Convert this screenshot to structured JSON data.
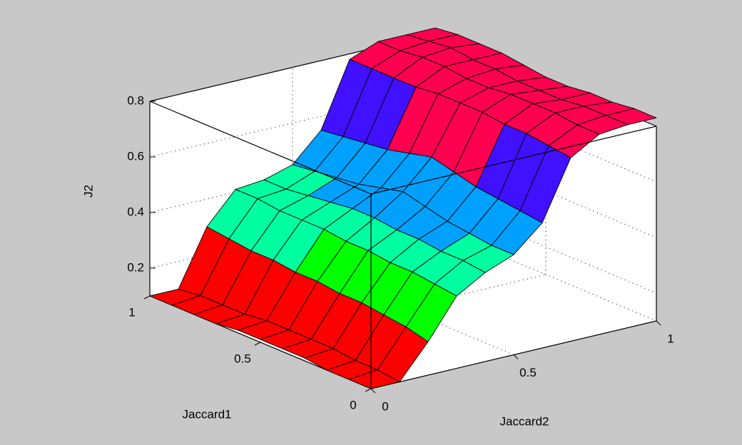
{
  "chart_data": {
    "type": "surface",
    "xlabel": "Jaccard1",
    "ylabel": "Jaccard2",
    "zlabel": "J2",
    "x": [
      0,
      0.1,
      0.2,
      0.3,
      0.4,
      0.5,
      0.6,
      0.7,
      0.8,
      0.9,
      1
    ],
    "y": [
      0,
      0.1,
      0.2,
      0.3,
      0.4,
      0.5,
      0.6,
      0.7,
      0.8,
      0.9,
      1
    ],
    "z": [
      [
        0.1,
        0.1,
        0.22,
        0.36,
        0.42,
        0.46,
        0.55,
        0.76,
        0.82,
        0.83,
        0.83
      ],
      [
        0.1,
        0.11,
        0.24,
        0.37,
        0.43,
        0.46,
        0.56,
        0.77,
        0.82,
        0.83,
        0.83
      ],
      [
        0.1,
        0.11,
        0.25,
        0.38,
        0.43,
        0.47,
        0.57,
        0.78,
        0.83,
        0.83,
        0.82
      ],
      [
        0.11,
        0.12,
        0.26,
        0.38,
        0.44,
        0.48,
        0.58,
        0.78,
        0.83,
        0.82,
        0.82
      ],
      [
        0.11,
        0.12,
        0.26,
        0.39,
        0.44,
        0.5,
        0.6,
        0.79,
        0.83,
        0.82,
        0.81
      ],
      [
        0.11,
        0.12,
        0.27,
        0.39,
        0.45,
        0.52,
        0.62,
        0.79,
        0.82,
        0.82,
        0.81
      ],
      [
        0.11,
        0.12,
        0.27,
        0.4,
        0.45,
        0.5,
        0.6,
        0.79,
        0.82,
        0.83,
        0.82
      ],
      [
        0.1,
        0.11,
        0.28,
        0.4,
        0.44,
        0.48,
        0.58,
        0.78,
        0.83,
        0.83,
        0.83
      ],
      [
        0.1,
        0.11,
        0.28,
        0.4,
        0.43,
        0.47,
        0.57,
        0.78,
        0.83,
        0.84,
        0.83
      ],
      [
        0.1,
        0.11,
        0.29,
        0.41,
        0.42,
        0.46,
        0.56,
        0.78,
        0.82,
        0.83,
        0.83
      ],
      [
        0.1,
        0.1,
        0.3,
        0.41,
        0.42,
        0.45,
        0.55,
        0.78,
        0.82,
        0.82,
        0.82
      ]
    ],
    "xlim": [
      0,
      1
    ],
    "ylim": [
      0,
      1
    ],
    "zlim": [
      0.1,
      0.8
    ],
    "xticks": [
      0,
      0.5,
      1
    ],
    "yticks": [
      0,
      0.5,
      1
    ],
    "zticks": [
      0.2,
      0.4,
      0.6,
      0.8
    ],
    "grid": true,
    "colormap": [
      "#ff0000",
      "#00ff00",
      "#00ffa0",
      "#00a0ff",
      "#4010ff",
      "#ff0050"
    ]
  }
}
